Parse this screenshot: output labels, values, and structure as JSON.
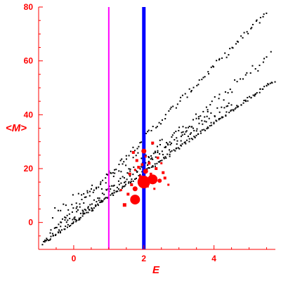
{
  "chart_data": {
    "type": "scatter",
    "xlabel": "E",
    "ylabel": "<M>",
    "xlim": [
      -1,
      5.75
    ],
    "ylim": [
      -10,
      80
    ],
    "x_ticks": [
      0,
      2,
      4
    ],
    "y_ticks": [
      0,
      20,
      40,
      60,
      80
    ],
    "grid": false,
    "colors": {
      "axis": "#ff0000",
      "black_points": "#000000",
      "red_points": "#ff0000",
      "vline_1": "#ff00ff",
      "vline_2": "#0000ff"
    },
    "vertical_lines": [
      {
        "x": 1.0,
        "color": "#ff00ff"
      },
      {
        "x": 2.0,
        "color": "#0000ff"
      }
    ],
    "bands": [
      {
        "x_start": -0.9,
        "x_end": 5.75,
        "y_start": -8,
        "y_end": 53,
        "n": 200,
        "jitter": 0.6
      },
      {
        "x_start": -0.8,
        "x_end": 5.5,
        "y_start": -6,
        "y_end": 78,
        "n": 120,
        "jitter": 1.2
      },
      {
        "x_start": -0.5,
        "x_end": 4.5,
        "y_start": -2,
        "y_end": 45,
        "n": 90,
        "jitter": 1.5
      },
      {
        "x_start": 0.0,
        "x_end": 5.6,
        "y_start": 0,
        "y_end": 62,
        "n": 80,
        "jitter": 2.0
      },
      {
        "x_start": -0.6,
        "x_end": 3.8,
        "y_start": 3,
        "y_end": 40,
        "n": 60,
        "jitter": 2.5
      }
    ],
    "red_points": [
      {
        "x": 2.0,
        "y": 15.0,
        "size": 9
      },
      {
        "x": 2.25,
        "y": 16.0,
        "size": 7
      },
      {
        "x": 1.75,
        "y": 8.5,
        "size": 7
      },
      {
        "x": 1.75,
        "y": 12.5,
        "size": 3.5
      },
      {
        "x": 2.05,
        "y": 19.0,
        "size": 3.5
      },
      {
        "x": 2.0,
        "y": 26.5,
        "size": 3.5
      },
      {
        "x": 2.45,
        "y": 15.5,
        "size": 3
      },
      {
        "x": 1.45,
        "y": 6.5,
        "size": 2.5
      },
      {
        "x": 1.65,
        "y": 14.0,
        "size": 2
      },
      {
        "x": 1.55,
        "y": 10.5,
        "size": 2
      },
      {
        "x": 1.6,
        "y": 18.0,
        "size": 2
      },
      {
        "x": 1.8,
        "y": 23.0,
        "size": 2
      },
      {
        "x": 1.85,
        "y": 20.5,
        "size": 2
      },
      {
        "x": 2.15,
        "y": 22.0,
        "size": 2
      },
      {
        "x": 2.25,
        "y": 29.5,
        "size": 2
      },
      {
        "x": 2.35,
        "y": 20.0,
        "size": 2
      },
      {
        "x": 2.55,
        "y": 18.5,
        "size": 2
      },
      {
        "x": 2.6,
        "y": 16.5,
        "size": 2
      },
      {
        "x": 1.7,
        "y": 26.0,
        "size": 2
      },
      {
        "x": 2.1,
        "y": 13.5,
        "size": 2
      },
      {
        "x": 1.9,
        "y": 17.0,
        "size": 2
      },
      {
        "x": 2.4,
        "y": 24.0,
        "size": 1.8
      },
      {
        "x": 1.35,
        "y": 12.0,
        "size": 1.5
      },
      {
        "x": 2.7,
        "y": 14.0,
        "size": 1.5
      },
      {
        "x": 1.95,
        "y": 21.5,
        "size": 1.8
      },
      {
        "x": 2.2,
        "y": 18.0,
        "size": 1.8
      },
      {
        "x": 2.5,
        "y": 22.0,
        "size": 1.5
      },
      {
        "x": 1.75,
        "y": 19.5,
        "size": 1.5
      },
      {
        "x": 2.05,
        "y": 24.5,
        "size": 1.5
      },
      {
        "x": 2.3,
        "y": 12.5,
        "size": 1.5
      }
    ]
  }
}
